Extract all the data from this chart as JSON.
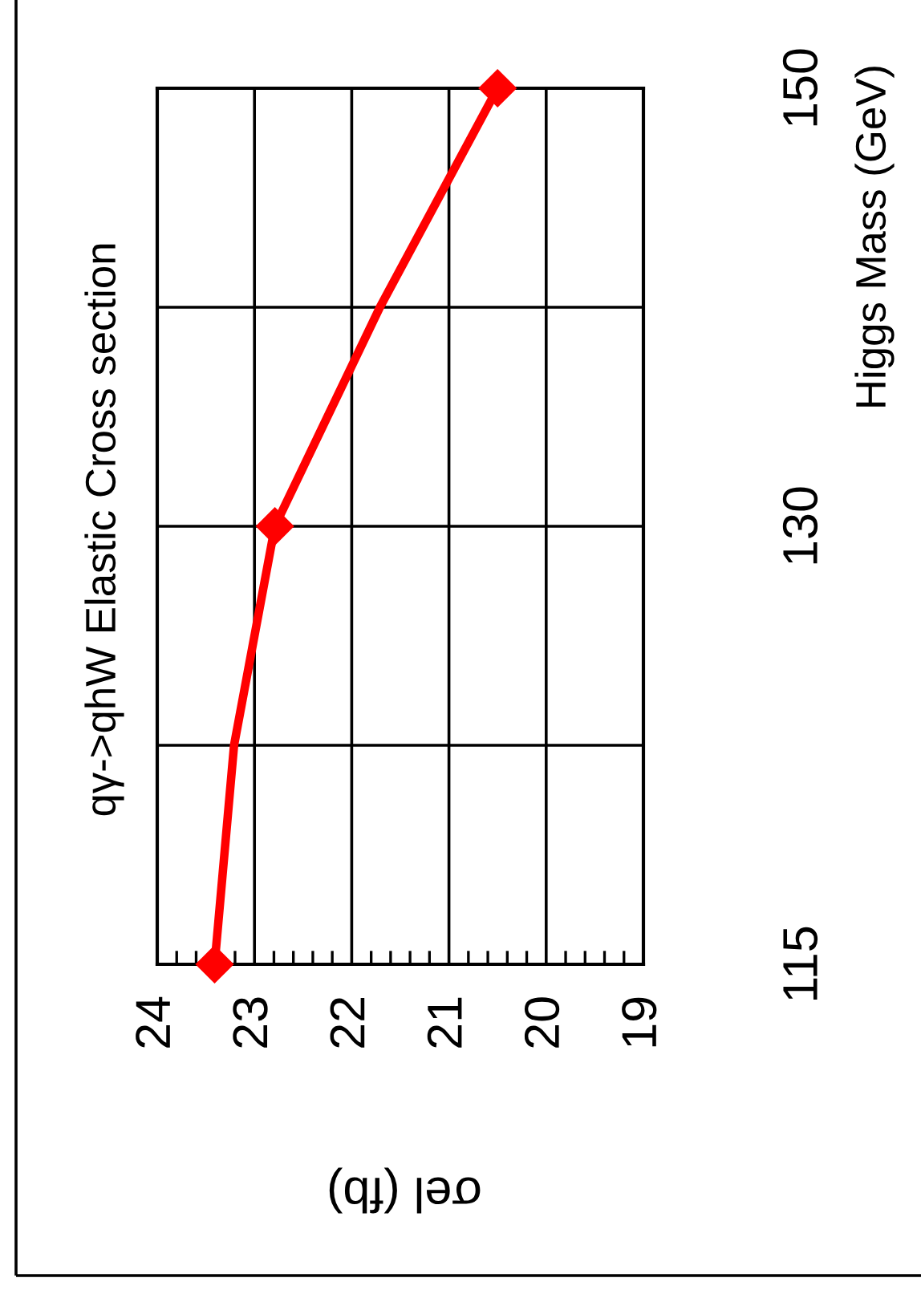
{
  "chart_data": {
    "type": "line",
    "title": "qγ->qhW Elastic Cross section",
    "xlabel": "σel (fb)",
    "ylabel": "Higgs Mass (GeV)",
    "orientation": "horizontal",
    "categories": [
      "150",
      null,
      "130",
      null,
      "115"
    ],
    "xlim": [
      24,
      19
    ],
    "xticks": [
      24,
      23,
      22,
      21,
      20,
      19
    ],
    "grid": true,
    "series": [
      {
        "color": "#ff0000",
        "values": [
          20.5,
          21.71,
          22.79,
          23.21,
          23.41
        ],
        "marker": "none"
      },
      {
        "type": "scatter",
        "color": "#ff0000",
        "values": [
          20.5,
          null,
          22.79,
          null,
          23.41
        ],
        "marker": "diamond"
      }
    ]
  }
}
